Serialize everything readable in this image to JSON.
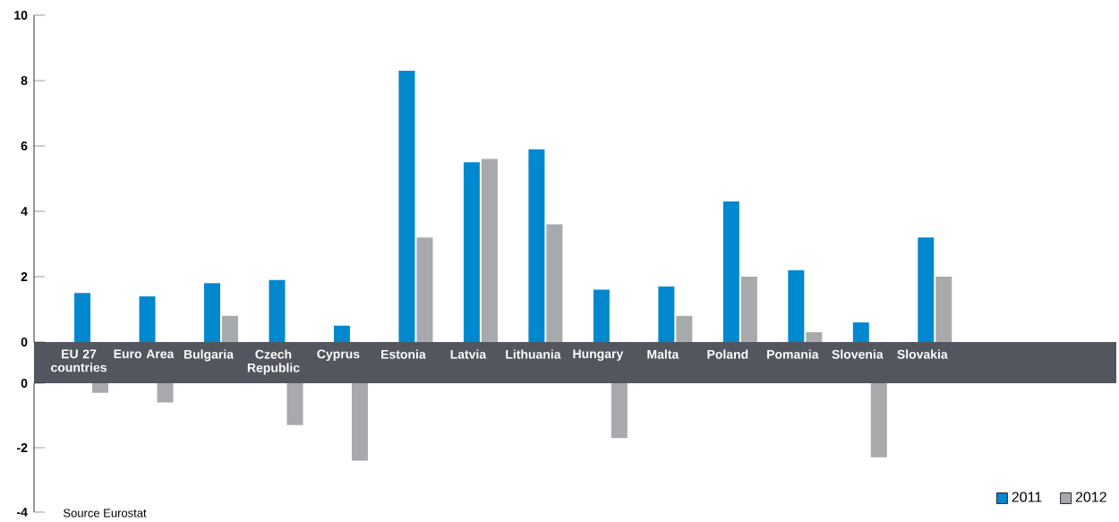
{
  "chart_data": [
    {
      "type": "bar",
      "categories": [
        "EU 27 countries",
        "Euro Area",
        "Bulgaria",
        "Czech Republic",
        "Cyprus",
        "Estonia",
        "Latvia",
        "Lithuania",
        "Hungary",
        "Malta",
        "Poland",
        "Pomania",
        "Slovenia",
        "Slovakia"
      ],
      "series": [
        {
          "color": "#0088cf",
          "values": [
            1.5,
            1.4,
            1.8,
            1.9,
            0.5,
            8.3,
            5.5,
            5.9,
            1.6,
            1.7,
            4.3,
            2.2,
            0.6,
            3.2
          ]
        },
        {
          "color": "#a7a9ac",
          "values": [
            null,
            null,
            0.8,
            null,
            null,
            3.2,
            5.6,
            3.6,
            null,
            0.8,
            2.0,
            0.3,
            null,
            2.0
          ]
        }
      ],
      "ylim": [
        0,
        10
      ],
      "yticks": [
        0,
        2,
        4,
        6,
        8,
        10
      ]
    },
    {
      "type": "bar",
      "categories": [
        null,
        null,
        null,
        null,
        null,
        null,
        null,
        null,
        null,
        null,
        null,
        null,
        null,
        null
      ],
      "tick_labels": "y",
      "series": [
        {
          "name": "2011",
          "color": "#0088cf",
          "values": [
            null,
            null,
            null,
            null,
            null,
            null,
            null,
            null,
            null,
            null,
            null,
            null,
            null,
            null
          ]
        },
        {
          "name": "2012",
          "color": "#a7a9ac",
          "values": [
            -0.3,
            -0.6,
            null,
            -1.3,
            -2.4,
            null,
            null,
            null,
            -1.7,
            null,
            null,
            null,
            -2.3,
            null
          ]
        }
      ],
      "ylim": [
        -4,
        0
      ],
      "yticks": [
        -4,
        -2,
        0
      ],
      "legend": "bottom right",
      "annotations": [
        "Source Eurostat"
      ]
    }
  ]
}
